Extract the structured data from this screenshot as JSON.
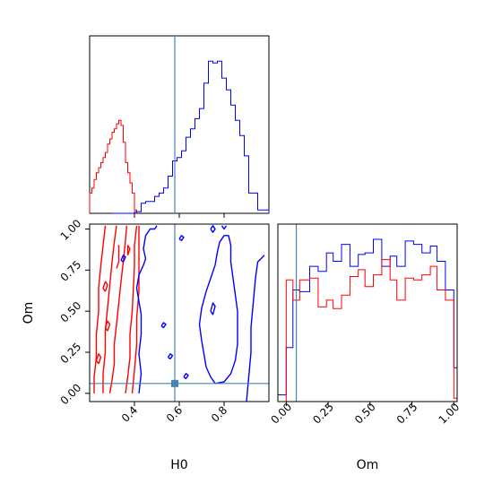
{
  "chart_data": {
    "type": "corner",
    "parameters": [
      "H0",
      "Om"
    ],
    "truth": {
      "H0": 0.58,
      "Om": 0.06
    },
    "colors": {
      "series_a": "#ff0000",
      "series_b": "#0000ff",
      "truth": "#4682b4"
    },
    "panels": [
      {
        "id": "h0-hist",
        "type": "histogram",
        "x": "H0",
        "xlim": [
          0.2,
          1.0
        ],
        "ylim": [
          0,
          1.05
        ],
        "series": [
          {
            "color": "red",
            "bin_edges": [
              0.2,
              0.21,
              0.22,
              0.23,
              0.24,
              0.25,
              0.26,
              0.27,
              0.28,
              0.29,
              0.3,
              0.31,
              0.32,
              0.33,
              0.34,
              0.35,
              0.36,
              0.37,
              0.38,
              0.39,
              0.4,
              0.41
            ],
            "counts": [
              0.12,
              0.15,
              0.2,
              0.24,
              0.27,
              0.3,
              0.33,
              0.36,
              0.41,
              0.44,
              0.48,
              0.5,
              0.53,
              0.55,
              0.52,
              0.42,
              0.3,
              0.24,
              0.18,
              0.12,
              0.02
            ]
          },
          {
            "color": "blue",
            "bin_edges": [
              0.3,
              0.4,
              0.43,
              0.45,
              0.49,
              0.51,
              0.53,
              0.55,
              0.57,
              0.59,
              0.61,
              0.63,
              0.65,
              0.67,
              0.69,
              0.71,
              0.73,
              0.75,
              0.77,
              0.79,
              0.81,
              0.83,
              0.85,
              0.87,
              0.89,
              0.91,
              0.95,
              1.0
            ],
            "counts": [
              0.0,
              0.01,
              0.06,
              0.07,
              0.1,
              0.12,
              0.15,
              0.22,
              0.31,
              0.33,
              0.37,
              0.45,
              0.5,
              0.56,
              0.62,
              0.77,
              0.9,
              0.89,
              0.9,
              0.8,
              0.73,
              0.64,
              0.55,
              0.46,
              0.34,
              0.12,
              0.02
            ]
          }
        ]
      },
      {
        "id": "h0-om-contour",
        "type": "contour",
        "x": "H0",
        "y": "Om",
        "xlim": [
          0.2,
          1.0
        ],
        "ylim": [
          -0.05,
          1.03
        ],
        "xticks": [
          0.4,
          0.6,
          0.8
        ],
        "yticks": [
          0.0,
          0.25,
          0.5,
          0.75,
          1.0
        ],
        "xtick_labels": [
          "0.4",
          "0.6",
          "0.8"
        ],
        "ytick_labels": [
          "0.00",
          "0.25",
          "0.50",
          "0.75",
          "1.00"
        ],
        "xlabel": "H0",
        "ylabel": "Om"
      },
      {
        "id": "om-hist",
        "type": "histogram",
        "x": "Om",
        "xlim": [
          -0.05,
          1.02
        ],
        "ylim": [
          0,
          1.05
        ],
        "xticks": [
          0.0,
          0.25,
          0.5,
          0.75,
          1.0
        ],
        "xtick_labels": [
          "0.00",
          "0.25",
          "0.50",
          "0.75",
          "1.00"
        ],
        "xlabel": "Om",
        "series": [
          {
            "color": "blue",
            "bin_edges": [
              -0.05,
              0.0,
              0.04,
              0.08,
              0.14,
              0.19,
              0.24,
              0.28,
              0.33,
              0.38,
              0.43,
              0.47,
              0.52,
              0.57,
              0.62,
              0.66,
              0.71,
              0.76,
              0.81,
              0.86,
              0.9,
              0.95,
              1.0,
              1.02
            ],
            "counts": [
              0.04,
              0.32,
              0.66,
              0.65,
              0.8,
              0.77,
              0.88,
              0.83,
              0.93,
              0.8,
              0.87,
              0.88,
              0.96,
              0.8,
              0.86,
              0.8,
              0.95,
              0.93,
              0.88,
              0.92,
              0.83,
              0.66,
              0.2
            ]
          },
          {
            "color": "red",
            "bin_edges": [
              -0.05,
              0.0,
              0.04,
              0.08,
              0.14,
              0.19,
              0.24,
              0.28,
              0.33,
              0.38,
              0.43,
              0.47,
              0.52,
              0.57,
              0.62,
              0.66,
              0.71,
              0.76,
              0.81,
              0.86,
              0.9,
              0.95,
              1.0,
              1.02
            ],
            "counts": [
              0.0,
              0.72,
              0.6,
              0.72,
              0.73,
              0.56,
              0.6,
              0.55,
              0.63,
              0.74,
              0.78,
              0.68,
              0.75,
              0.84,
              0.72,
              0.6,
              0.73,
              0.72,
              0.75,
              0.8,
              0.66,
              0.6,
              0.02
            ]
          }
        ]
      }
    ],
    "contours": [
      {
        "color": "red",
        "points": [
          [
            0.29,
            0.0
          ],
          [
            0.3,
            0.08
          ],
          [
            0.31,
            0.18
          ],
          [
            0.31,
            0.3
          ],
          [
            0.32,
            0.42
          ],
          [
            0.33,
            0.55
          ],
          [
            0.34,
            0.68
          ],
          [
            0.35,
            0.8
          ],
          [
            0.36,
            0.93
          ],
          [
            0.365,
            1.02
          ]
        ]
      },
      {
        "color": "red",
        "points": [
          [
            0.26,
            0.0
          ],
          [
            0.26,
            0.12
          ],
          [
            0.27,
            0.25
          ],
          [
            0.27,
            0.38
          ],
          [
            0.28,
            0.52
          ],
          [
            0.29,
            0.66
          ],
          [
            0.3,
            0.8
          ],
          [
            0.31,
            0.92
          ],
          [
            0.32,
            1.02
          ]
        ]
      },
      {
        "color": "red",
        "points": [
          [
            0.36,
            0.0
          ],
          [
            0.37,
            0.1
          ],
          [
            0.38,
            0.22
          ],
          [
            0.38,
            0.36
          ],
          [
            0.39,
            0.5
          ],
          [
            0.395,
            0.64
          ],
          [
            0.4,
            0.78
          ],
          [
            0.4,
            0.9
          ],
          [
            0.41,
            1.02
          ]
        ]
      },
      {
        "color": "red",
        "points": [
          [
            0.22,
            0.0
          ],
          [
            0.22,
            0.1
          ],
          [
            0.23,
            0.22
          ],
          [
            0.23,
            0.36
          ],
          [
            0.24,
            0.5
          ],
          [
            0.24,
            0.64
          ],
          [
            0.25,
            0.78
          ],
          [
            0.26,
            0.9
          ],
          [
            0.27,
            1.02
          ]
        ]
      },
      {
        "color": "red",
        "points": [
          [
            0.39,
            0.0
          ],
          [
            0.4,
            0.14
          ],
          [
            0.41,
            0.3
          ],
          [
            0.41,
            0.46
          ],
          [
            0.42,
            0.62
          ],
          [
            0.42,
            0.78
          ],
          [
            0.42,
            0.9
          ],
          [
            0.42,
            1.02
          ]
        ]
      },
      {
        "color": "blue",
        "points": [
          [
            0.42,
            0.0
          ],
          [
            0.43,
            0.12
          ],
          [
            0.42,
            0.24
          ],
          [
            0.43,
            0.36
          ],
          [
            0.43,
            0.48
          ],
          [
            0.42,
            0.56
          ],
          [
            0.41,
            0.64
          ],
          [
            0.42,
            0.72
          ],
          [
            0.44,
            0.78
          ],
          [
            0.45,
            0.82
          ],
          [
            0.44,
            0.88
          ],
          [
            0.45,
            0.96
          ],
          [
            0.47,
            1.0
          ],
          [
            0.49,
            1.0
          ],
          [
            0.5,
            1.02
          ]
        ]
      },
      {
        "color": "blue",
        "points": [
          [
            0.76,
            0.06
          ],
          [
            0.74,
            0.1
          ],
          [
            0.72,
            0.16
          ],
          [
            0.71,
            0.24
          ],
          [
            0.7,
            0.32
          ],
          [
            0.69,
            0.42
          ],
          [
            0.7,
            0.52
          ],
          [
            0.72,
            0.62
          ],
          [
            0.74,
            0.7
          ],
          [
            0.76,
            0.78
          ],
          [
            0.77,
            0.86
          ],
          [
            0.78,
            0.92
          ],
          [
            0.8,
            0.96
          ],
          [
            0.82,
            0.96
          ],
          [
            0.83,
            0.9
          ],
          [
            0.83,
            0.8
          ],
          [
            0.84,
            0.7
          ],
          [
            0.85,
            0.6
          ],
          [
            0.86,
            0.5
          ],
          [
            0.86,
            0.4
          ],
          [
            0.86,
            0.3
          ],
          [
            0.85,
            0.2
          ],
          [
            0.83,
            0.12
          ],
          [
            0.8,
            0.07
          ],
          [
            0.76,
            0.06
          ]
        ]
      },
      {
        "color": "blue",
        "points": [
          [
            0.9,
            -0.05
          ],
          [
            0.91,
            0.1
          ],
          [
            0.92,
            0.25
          ],
          [
            0.92,
            0.4
          ],
          [
            0.93,
            0.55
          ],
          [
            0.94,
            0.7
          ],
          [
            0.95,
            0.8
          ],
          [
            0.98,
            0.84
          ]
        ]
      },
      {
        "color": "blue",
        "points": [
          [
            0.74,
            0.5
          ],
          [
            0.75,
            0.55
          ],
          [
            0.76,
            0.53
          ],
          [
            0.75,
            0.48
          ],
          [
            0.74,
            0.5
          ]
        ]
      },
      {
        "color": "blue",
        "points": [
          [
            0.52,
            0.41
          ],
          [
            0.53,
            0.43
          ],
          [
            0.54,
            0.42
          ],
          [
            0.53,
            0.4
          ],
          [
            0.52,
            0.41
          ]
        ]
      },
      {
        "color": "blue",
        "points": [
          [
            0.55,
            0.22
          ],
          [
            0.56,
            0.24
          ],
          [
            0.57,
            0.23
          ],
          [
            0.56,
            0.21
          ],
          [
            0.55,
            0.22
          ]
        ]
      },
      {
        "color": "blue",
        "points": [
          [
            0.62,
            0.1
          ],
          [
            0.63,
            0.12
          ],
          [
            0.64,
            0.11
          ],
          [
            0.63,
            0.09
          ],
          [
            0.62,
            0.1
          ]
        ]
      },
      {
        "color": "blue",
        "points": [
          [
            0.79,
            1.02
          ],
          [
            0.8,
            1.0
          ],
          [
            0.81,
            1.02
          ]
        ]
      },
      {
        "color": "blue",
        "points": [
          [
            0.6,
            0.94
          ],
          [
            0.61,
            0.96
          ],
          [
            0.62,
            0.95
          ],
          [
            0.61,
            0.93
          ],
          [
            0.6,
            0.94
          ]
        ]
      },
      {
        "color": "blue",
        "points": [
          [
            0.74,
            1.0
          ],
          [
            0.75,
            1.02
          ],
          [
            0.76,
            1.0
          ],
          [
            0.75,
            0.98
          ],
          [
            0.74,
            1.0
          ]
        ]
      },
      {
        "color": "blue",
        "points": [
          [
            0.34,
            0.81
          ],
          [
            0.35,
            0.84
          ],
          [
            0.36,
            0.83
          ],
          [
            0.35,
            0.8
          ],
          [
            0.34,
            0.81
          ]
        ]
      },
      {
        "color": "red",
        "points": [
          [
            0.32,
            0.76
          ],
          [
            0.33,
            0.8
          ],
          [
            0.33,
            0.86
          ],
          [
            0.33,
            0.9
          ],
          [
            0.33,
            0.8
          ]
        ]
      },
      {
        "color": "red",
        "points": [
          [
            0.37,
            0.84
          ],
          [
            0.38,
            0.88
          ],
          [
            0.37,
            0.9
          ],
          [
            0.37,
            0.84
          ]
        ]
      },
      {
        "color": "red",
        "points": [
          [
            0.27,
            0.62
          ],
          [
            0.28,
            0.66
          ],
          [
            0.27,
            0.68
          ],
          [
            0.26,
            0.64
          ],
          [
            0.27,
            0.62
          ]
        ]
      },
      {
        "color": "red",
        "points": [
          [
            0.28,
            0.38
          ],
          [
            0.29,
            0.42
          ],
          [
            0.28,
            0.44
          ],
          [
            0.27,
            0.4
          ],
          [
            0.28,
            0.38
          ]
        ]
      },
      {
        "color": "red",
        "points": [
          [
            0.24,
            0.18
          ],
          [
            0.25,
            0.22
          ],
          [
            0.24,
            0.24
          ],
          [
            0.23,
            0.2
          ],
          [
            0.24,
            0.18
          ]
        ]
      }
    ]
  }
}
